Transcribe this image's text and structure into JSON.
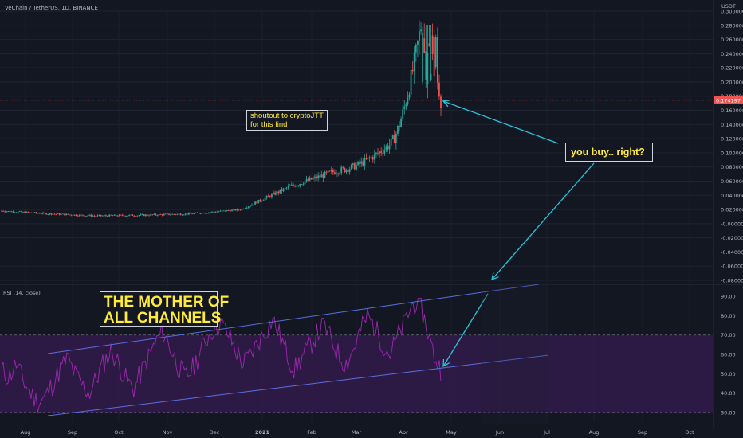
{
  "header": {
    "symbol_title": "VeChain / TetherUS, 1D, BINANCE",
    "price_unit": "USDT"
  },
  "rsi_panel": {
    "title": "RSI (14, close)"
  },
  "annotations": {
    "shoutout": "shoutout to cryptoJTT\nfor this find",
    "buy_question": "you buy.. right?",
    "mother_channel": "THE MOTHER OF\nALL CHANNELS"
  },
  "colors": {
    "background": "#131722",
    "up_candle": "#26a69a",
    "down_candle": "#ef5350",
    "rsi_line": "#9c27b0",
    "channel_line": "#5a6ee0",
    "arrow": "#26c6da",
    "annotation_text": "#ffeb3b",
    "current_price_tag": "#ef5350"
  },
  "chart_data": [
    {
      "type": "candlestick",
      "title": "VeChain / TetherUS, 1D, BINANCE",
      "ylabel": "USDT",
      "ylim": [
        -0.08,
        0.3
      ],
      "y_ticks": [
        "0.300000",
        "0.280000",
        "0.260000",
        "0.240000",
        "0.220000",
        "0.200000",
        "0.180000",
        "0.160000",
        "0.140000",
        "0.120000",
        "0.100000",
        "0.080000",
        "0.060000",
        "0.040000",
        "0.020000",
        "-0.000000",
        "-0.020000",
        "-0.040000",
        "-0.060000",
        "-0.080000"
      ],
      "current_price": "0.174197",
      "x_ticks": [
        "Aug",
        "Sep",
        "Oct",
        "Nov",
        "Dec",
        "2021",
        "Feb",
        "Mar",
        "Apr",
        "May",
        "Jun",
        "Jul",
        "Aug",
        "Sep",
        "Oct"
      ],
      "approx_close_by_month": [
        {
          "month": "Aug 2020",
          "close": 0.018
        },
        {
          "month": "Sep 2020",
          "close": 0.014
        },
        {
          "month": "Oct 2020",
          "close": 0.011
        },
        {
          "month": "Nov 2020",
          "close": 0.012
        },
        {
          "month": "Dec 2020",
          "close": 0.014
        },
        {
          "month": "Jan 2021",
          "close": 0.02
        },
        {
          "month": "Feb 2021",
          "close": 0.052
        },
        {
          "month": "Mar 2021",
          "close": 0.075
        },
        {
          "month": "Apr 2021 (early)",
          "close": 0.11
        },
        {
          "month": "Apr 2021 (peak)",
          "close": 0.28
        },
        {
          "month": "Apr 2021 (last)",
          "close": 0.174197
        }
      ],
      "grid": true
    },
    {
      "type": "line",
      "title": "RSI (14, close)",
      "ylim": [
        25,
        95
      ],
      "y_ticks": [
        "90.00",
        "80.00",
        "70.00",
        "60.00",
        "50.00",
        "40.00",
        "30.00"
      ],
      "bands": [
        30,
        70
      ],
      "x_ticks": [
        "Aug",
        "Sep",
        "Oct",
        "Nov",
        "Dec",
        "2021",
        "Feb",
        "Mar",
        "Apr",
        "May",
        "Jun",
        "Jul",
        "Aug",
        "Sep",
        "Oct"
      ],
      "rsi_values": [
        52,
        48,
        55,
        46,
        40,
        35,
        38,
        45,
        52,
        58,
        50,
        44,
        40,
        48,
        56,
        62,
        55,
        47,
        42,
        50,
        58,
        66,
        72,
        64,
        55,
        48,
        52,
        60,
        68,
        74,
        76,
        70,
        62,
        55,
        60,
        66,
        72,
        78,
        70,
        60,
        52,
        58,
        64,
        70,
        75,
        68,
        60,
        55,
        62,
        72,
        80,
        74,
        66,
        60,
        68,
        76,
        85,
        88,
        75,
        60,
        52
      ],
      "channel_upper": [
        [
          0.0,
          60
        ],
        [
          1.0,
          94
        ]
      ],
      "channel_lower": [
        [
          0.0,
          25
        ],
        [
          1.0,
          60
        ]
      ],
      "grid": true
    }
  ]
}
